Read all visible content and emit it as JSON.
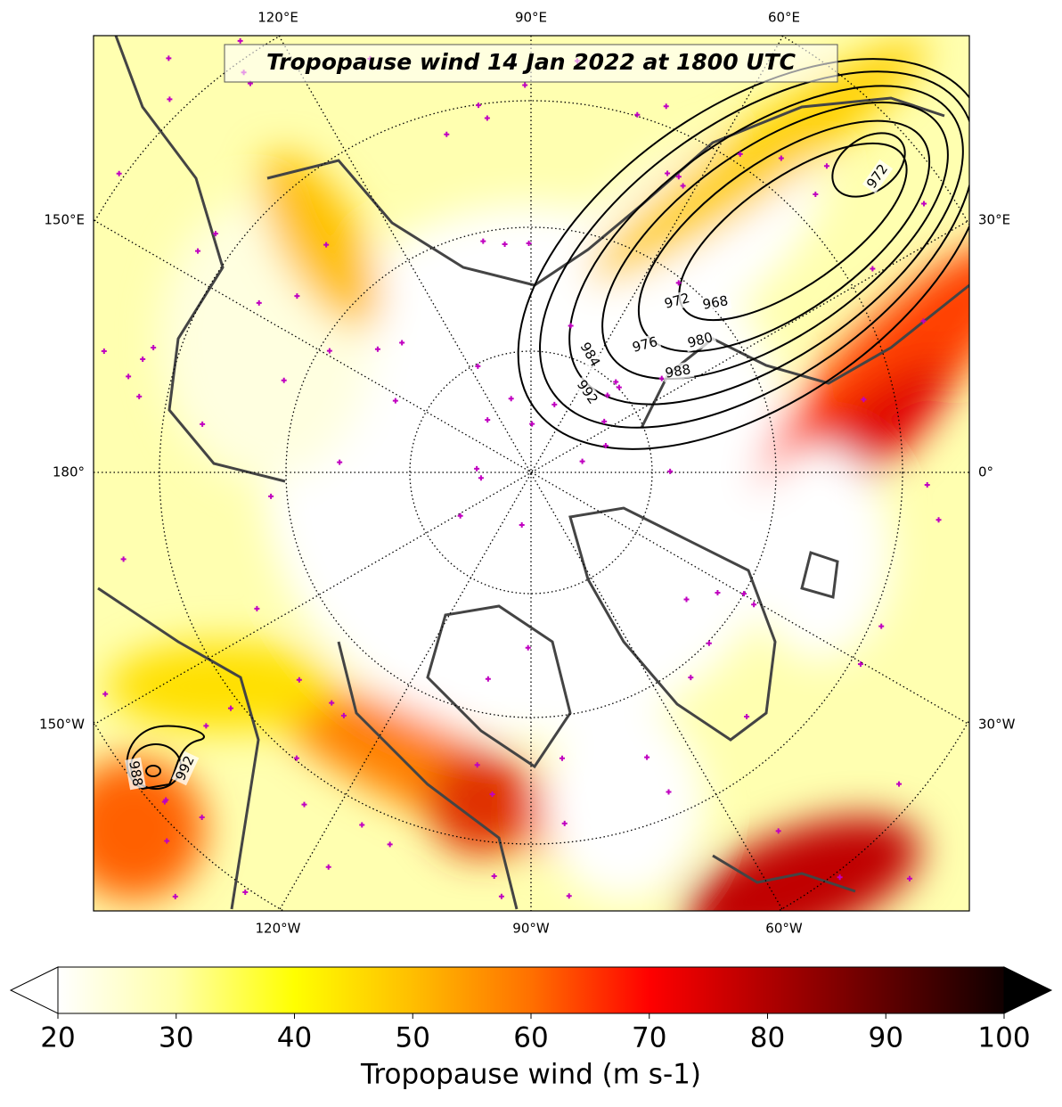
{
  "title": "Tropopause wind 14 Jan 2022 at 1800 UTC",
  "longitude_labels": {
    "top": [
      "120°E",
      "90°E",
      "60°E"
    ],
    "bottom": [
      "120°W",
      "90°W",
      "60°W"
    ],
    "left": [
      "150°E",
      "180°",
      "150°W"
    ],
    "right": [
      "30°E",
      "0°",
      "30°W"
    ]
  },
  "contour_labels": [
    972,
    968,
    972,
    976,
    980,
    984,
    988,
    992,
    988,
    992
  ],
  "colorbar": {
    "label": "Tropopause wind (m s-1)",
    "range": [
      20,
      100
    ],
    "ticks": [
      20,
      30,
      40,
      50,
      60,
      70,
      80,
      90,
      100
    ]
  }
}
